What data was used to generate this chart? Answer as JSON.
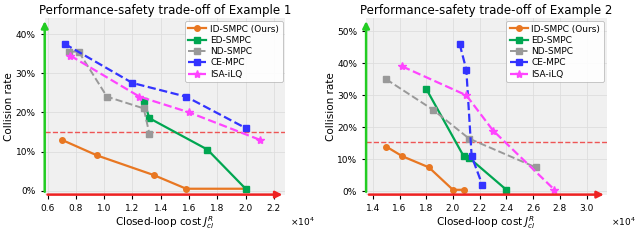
{
  "plot1": {
    "title": "Performance-safety trade-off of Example 1",
    "xlabel": "Closed-loop cost $J_{cl}^R$",
    "ylabel": "Collision rate",
    "xlim": [
      5800.0,
      22800.0
    ],
    "ylim": [
      -0.01,
      0.44
    ],
    "xticks": [
      6000.0,
      8000.0,
      10000.0,
      12000.0,
      14000.0,
      16000.0,
      18000.0,
      20000.0,
      22000.0
    ],
    "yticks": [
      0.0,
      0.1,
      0.2,
      0.3,
      0.4
    ],
    "hline": 0.15,
    "series": [
      {
        "label": "ID-SMPC (Ours)",
        "color": "#E87722",
        "linestyle": "-",
        "marker": "o",
        "markersize": 4,
        "linewidth": 1.6,
        "x": [
          7000.0,
          9500.0,
          13500.0,
          15800.0,
          20000.0
        ],
        "y": [
          0.13,
          0.09,
          0.04,
          0.005,
          0.005
        ]
      },
      {
        "label": "ED-SMPC",
        "color": "#00A651",
        "linestyle": "-",
        "marker": "s",
        "markersize": 4,
        "linewidth": 1.6,
        "x": [
          12800.0,
          13200.0,
          17300.0,
          20000.0
        ],
        "y": [
          0.23,
          0.185,
          0.105,
          0.005
        ]
      },
      {
        "label": "ND-SMPC",
        "color": "#999999",
        "linestyle": "--",
        "marker": "s",
        "markersize": 4,
        "linewidth": 1.4,
        "x": [
          7500.0,
          8200.0,
          10200.0,
          12800.0,
          13200.0
        ],
        "y": [
          0.355,
          0.355,
          0.24,
          0.21,
          0.145
        ]
      },
      {
        "label": "CE-MPC",
        "color": "#3333FF",
        "linestyle": "--",
        "marker": "s",
        "markersize": 4,
        "linewidth": 1.6,
        "x": [
          7200.0,
          12000.0,
          15800.0,
          20000.0
        ],
        "y": [
          0.375,
          0.275,
          0.24,
          0.16
        ]
      },
      {
        "label": "ISA-iLQ",
        "color": "#FF44FF",
        "linestyle": "--",
        "marker": "*",
        "markersize": 6,
        "linewidth": 1.6,
        "x": [
          7600.0,
          12500.0,
          16000.0,
          21000.0
        ],
        "y": [
          0.345,
          0.24,
          0.2,
          0.13
        ]
      }
    ]
  },
  "plot2": {
    "title": "Performance-safety trade-off of Example 2",
    "xlabel": "Closed-loop cost $J_{cl}^R$",
    "ylabel": "Collision rate",
    "xlim": [
      13500.0,
      31500.0
    ],
    "ylim": [
      -0.01,
      0.54
    ],
    "xticks": [
      14000.0,
      16000.0,
      18000.0,
      20000.0,
      22000.0,
      24000.0,
      26000.0,
      28000.0,
      30000.0
    ],
    "yticks": [
      0.0,
      0.1,
      0.2,
      0.3,
      0.4,
      0.5
    ],
    "hline": 0.155,
    "series": [
      {
        "label": "ID-SMPC (Ours)",
        "color": "#E87722",
        "linestyle": "-",
        "marker": "o",
        "markersize": 4,
        "linewidth": 1.6,
        "x": [
          15000.0,
          16200.0,
          18200.0,
          20000.0,
          20800.0
        ],
        "y": [
          0.14,
          0.11,
          0.075,
          0.005,
          0.005
        ]
      },
      {
        "label": "ED-SMPC",
        "color": "#00A651",
        "linestyle": "-",
        "marker": "s",
        "markersize": 4,
        "linewidth": 1.6,
        "x": [
          18000.0,
          20800.0,
          21200.0,
          24000.0
        ],
        "y": [
          0.32,
          0.11,
          0.105,
          0.005
        ]
      },
      {
        "label": "ND-SMPC",
        "color": "#999999",
        "linestyle": "--",
        "marker": "s",
        "markersize": 4,
        "linewidth": 1.4,
        "x": [
          15000.0,
          18500.0,
          21200.0,
          26200.0
        ],
        "y": [
          0.35,
          0.255,
          0.165,
          0.075
        ]
      },
      {
        "label": "CE-MPC",
        "color": "#3333FF",
        "linestyle": "--",
        "marker": "s",
        "markersize": 4,
        "linewidth": 1.6,
        "x": [
          20500.0,
          21000.0,
          21400.0,
          22200.0
        ],
        "y": [
          0.46,
          0.38,
          0.11,
          0.02
        ]
      },
      {
        "label": "ISA-iLQ",
        "color": "#FF44FF",
        "linestyle": "--",
        "marker": "*",
        "markersize": 6,
        "linewidth": 1.6,
        "x": [
          16200.0,
          21000.0,
          23000.0,
          27600.0
        ],
        "y": [
          0.39,
          0.3,
          0.19,
          0.005
        ]
      }
    ]
  },
  "hline_color": "#EE5555",
  "hline_lw": 1.0,
  "spine_color_left": "#22CC22",
  "spine_color_bottom": "#EE2222",
  "grid_color": "#dddddd",
  "background_color": "#f0f0f0",
  "title_fontsize": 8.5,
  "label_fontsize": 7.5,
  "tick_fontsize": 6.5,
  "legend_fontsize": 6.5
}
